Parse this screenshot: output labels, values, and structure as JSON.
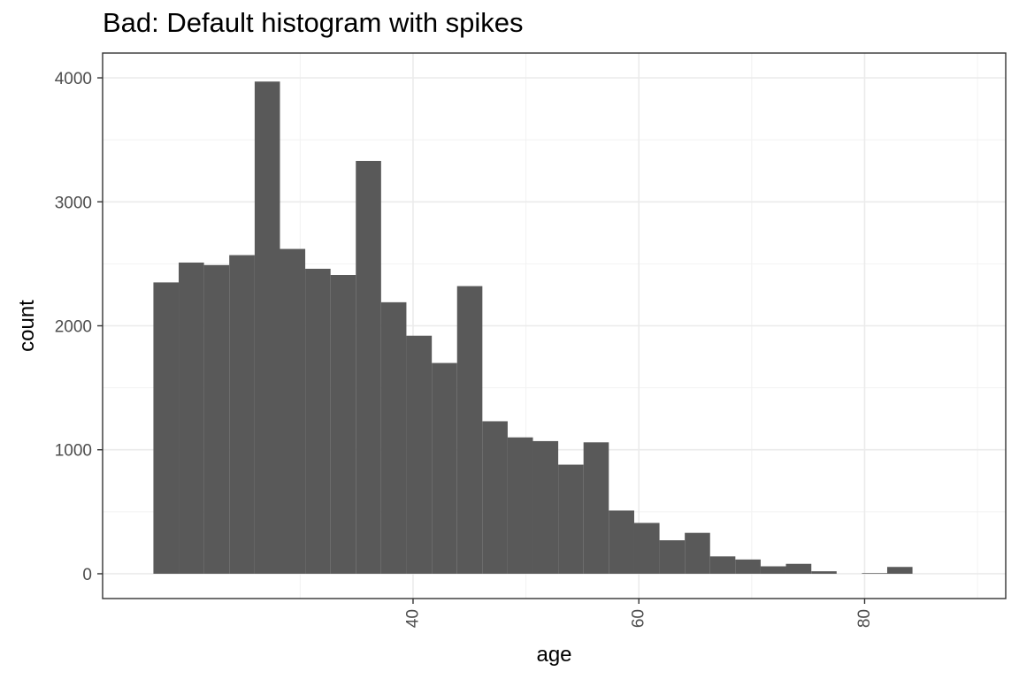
{
  "chart_data": {
    "type": "bar",
    "title": "Bad: Default histogram with spikes",
    "xlabel": "age",
    "ylabel": "count",
    "xlim": [
      12.5,
      92.5
    ],
    "ylim": [
      -200,
      4200
    ],
    "x_ticks": [
      40,
      60,
      80
    ],
    "y_ticks": [
      0,
      1000,
      2000,
      3000,
      4000
    ],
    "x_minor_ticks": [
      30,
      50,
      70,
      90
    ],
    "y_minor_ticks": [
      500,
      1500,
      2500,
      3500
    ],
    "grid": true,
    "bar_color": "#595959",
    "bins": [
      {
        "x0": 17.0,
        "x1": 19.24,
        "count": 2350
      },
      {
        "x0": 19.24,
        "x1": 21.48,
        "count": 2510
      },
      {
        "x0": 21.48,
        "x1": 23.72,
        "count": 2490
      },
      {
        "x0": 23.72,
        "x1": 25.97,
        "count": 2570
      },
      {
        "x0": 25.97,
        "x1": 28.21,
        "count": 3970
      },
      {
        "x0": 28.21,
        "x1": 30.45,
        "count": 2620
      },
      {
        "x0": 30.45,
        "x1": 32.69,
        "count": 2460
      },
      {
        "x0": 32.69,
        "x1": 34.93,
        "count": 2410
      },
      {
        "x0": 34.93,
        "x1": 37.17,
        "count": 3330
      },
      {
        "x0": 37.17,
        "x1": 39.41,
        "count": 2190
      },
      {
        "x0": 39.41,
        "x1": 41.66,
        "count": 1920
      },
      {
        "x0": 41.66,
        "x1": 43.9,
        "count": 1700
      },
      {
        "x0": 43.9,
        "x1": 46.14,
        "count": 2320
      },
      {
        "x0": 46.14,
        "x1": 48.38,
        "count": 1230
      },
      {
        "x0": 48.38,
        "x1": 50.62,
        "count": 1100
      },
      {
        "x0": 50.62,
        "x1": 52.86,
        "count": 1070
      },
      {
        "x0": 52.86,
        "x1": 55.1,
        "count": 880
      },
      {
        "x0": 55.1,
        "x1": 57.34,
        "count": 1060
      },
      {
        "x0": 57.34,
        "x1": 59.59,
        "count": 510
      },
      {
        "x0": 59.59,
        "x1": 61.83,
        "count": 410
      },
      {
        "x0": 61.83,
        "x1": 64.07,
        "count": 270
      },
      {
        "x0": 64.07,
        "x1": 66.31,
        "count": 330
      },
      {
        "x0": 66.31,
        "x1": 68.55,
        "count": 140
      },
      {
        "x0": 68.55,
        "x1": 70.79,
        "count": 115
      },
      {
        "x0": 70.79,
        "x1": 73.03,
        "count": 60
      },
      {
        "x0": 73.03,
        "x1": 75.28,
        "count": 80
      },
      {
        "x0": 75.28,
        "x1": 77.52,
        "count": 20
      },
      {
        "x0": 77.52,
        "x1": 79.76,
        "count": 0
      },
      {
        "x0": 79.76,
        "x1": 82.0,
        "count": 5
      },
      {
        "x0": 82.0,
        "x1": 84.24,
        "count": 55
      }
    ]
  }
}
